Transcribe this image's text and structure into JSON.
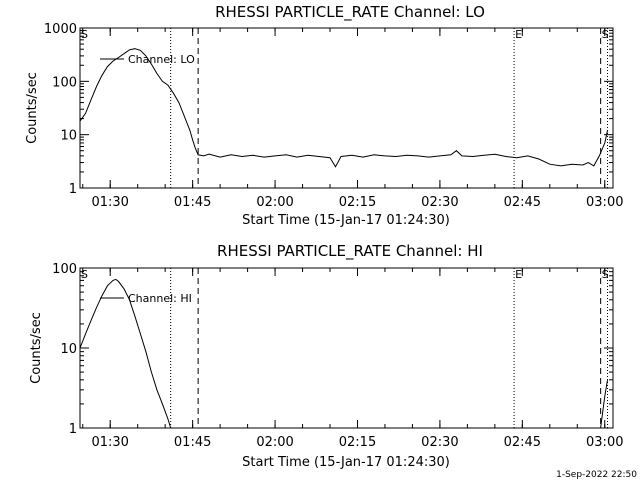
{
  "footer": {
    "timestamp": "1-Sep-2022 22:50"
  },
  "chart_data": [
    {
      "type": "line",
      "title": "RHESSI PARTICLE_RATE Channel: LO",
      "xlabel": "Start Time (15-Jan-17 01:24:30)",
      "ylabel": "Counts/sec",
      "yscale": "log",
      "ylim": [
        1,
        1000
      ],
      "xlim": [
        "01:24:30",
        "03:01:30"
      ],
      "xticks": [
        "01:30",
        "01:45",
        "02:00",
        "02:15",
        "02:30",
        "02:45",
        "03:00"
      ],
      "yticks": [
        "1",
        "10",
        "100",
        "1000"
      ],
      "legend": "Channel: LO",
      "legend_position": "top-left",
      "markers": [
        {
          "label": "S",
          "time": "01:24:30"
        },
        {
          "label": "E",
          "time": "02:43:30"
        },
        {
          "label": "S",
          "time": "02:59:15"
        }
      ],
      "dotted_lines": [
        "01:41:00",
        "02:43:30",
        "03:00:30"
      ],
      "dashed_lines": [
        "01:46:00",
        "02:59:15"
      ],
      "series": [
        {
          "name": "Channel: LO",
          "x": [
            "01:24:30",
            "01:25:30",
            "01:26:30",
            "01:27:30",
            "01:28:30",
            "01:29:30",
            "01:30:30",
            "01:31:30",
            "01:32:30",
            "01:33:30",
            "01:34:30",
            "01:35:30",
            "01:36:30",
            "01:37:30",
            "01:38:30",
            "01:39:30",
            "01:40:30",
            "01:41:30",
            "01:42:30",
            "01:43:30",
            "01:44:30",
            "01:45:00",
            "01:45:30",
            "01:46:00",
            "01:47:00",
            "01:48:00",
            "01:50:00",
            "01:52:00",
            "01:54:00",
            "01:56:00",
            "01:58:00",
            "02:00:00",
            "02:02:00",
            "02:04:00",
            "02:06:00",
            "02:08:00",
            "02:10:00",
            "02:11:00",
            "02:12:00",
            "02:14:00",
            "02:16:00",
            "02:18:00",
            "02:20:00",
            "02:22:00",
            "02:24:00",
            "02:26:00",
            "02:28:00",
            "02:30:00",
            "02:32:00",
            "02:33:00",
            "02:34:00",
            "02:36:00",
            "02:38:00",
            "02:40:00",
            "02:42:00",
            "02:44:00",
            "02:46:00",
            "02:48:00",
            "02:50:00",
            "02:52:00",
            "02:54:00",
            "02:56:00",
            "02:57:00",
            "02:58:00",
            "02:59:00",
            "03:00:00",
            "03:00:30"
          ],
          "y": [
            18,
            25,
            45,
            80,
            130,
            190,
            240,
            280,
            330,
            390,
            410,
            380,
            300,
            210,
            140,
            100,
            85,
            60,
            40,
            22,
            12,
            8,
            5.5,
            4.2,
            4,
            4.3,
            3.8,
            4.2,
            3.9,
            4.1,
            3.8,
            4,
            4.2,
            3.8,
            4.1,
            3.9,
            3.7,
            2.5,
            3.9,
            4.1,
            3.8,
            4.2,
            4,
            3.9,
            4.1,
            4,
            3.8,
            4,
            4.2,
            5,
            4,
            3.9,
            4.1,
            4.3,
            3.9,
            3.7,
            4,
            3.5,
            2.8,
            2.6,
            2.8,
            2.7,
            3,
            2.6,
            4,
            7,
            12
          ]
        }
      ]
    },
    {
      "type": "line",
      "title": "RHESSI PARTICLE_RATE Channel: HI",
      "xlabel": "Start Time (15-Jan-17 01:24:30)",
      "ylabel": "Counts/sec",
      "yscale": "log",
      "ylim": [
        1,
        100
      ],
      "xlim": [
        "01:24:30",
        "03:01:30"
      ],
      "xticks": [
        "01:30",
        "01:45",
        "02:00",
        "02:15",
        "02:30",
        "02:45",
        "03:00"
      ],
      "yticks": [
        "1",
        "10",
        "100"
      ],
      "legend": "Channel: HI",
      "legend_position": "top-left",
      "markers": [
        {
          "label": "S",
          "time": "01:24:30"
        },
        {
          "label": "E",
          "time": "02:43:30"
        },
        {
          "label": "S",
          "time": "02:59:15"
        }
      ],
      "dotted_lines": [
        "01:41:00",
        "02:43:30",
        "03:00:30"
      ],
      "dashed_lines": [
        "01:46:00",
        "02:59:15"
      ],
      "series": [
        {
          "name": "Channel: HI",
          "x": [
            "01:24:30",
            "01:25:30",
            "01:26:30",
            "01:27:30",
            "01:28:30",
            "01:29:30",
            "01:30:30",
            "01:31:00",
            "01:31:30",
            "01:32:30",
            "01:33:30",
            "01:34:30",
            "01:35:30",
            "01:36:30",
            "01:37:30",
            "01:38:30",
            "01:39:30",
            "01:40:30",
            "01:41:00"
          ],
          "y": [
            10,
            15,
            22,
            32,
            45,
            60,
            70,
            72,
            68,
            55,
            40,
            25,
            15,
            9,
            5,
            3,
            2,
            1.3,
            1
          ]
        },
        {
          "name": "",
          "x": [
            "02:59:15",
            "03:00:00",
            "03:00:30"
          ],
          "y": [
            1,
            2.5,
            4
          ]
        }
      ]
    }
  ]
}
